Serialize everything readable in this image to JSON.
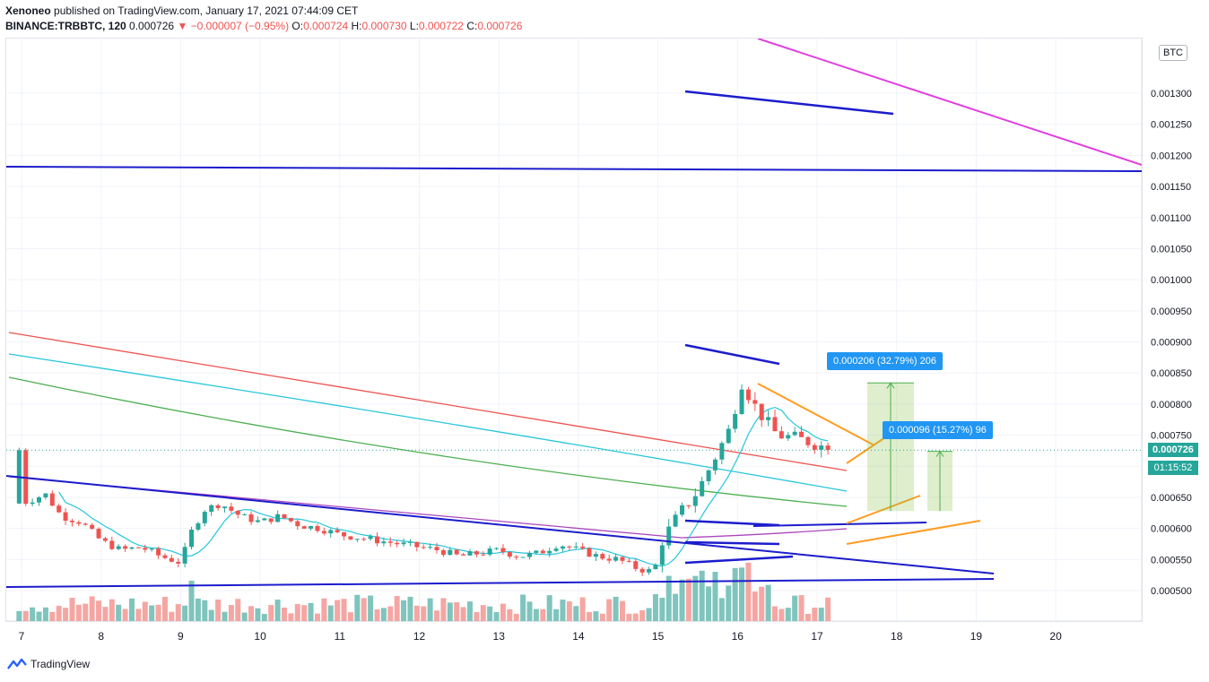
{
  "header": {
    "publisher": "Xenoneo",
    "published_text": "published on TradingView.com, January 17, 2021 07:44:09 CET",
    "symbol": "BINANCE:TRBBTC, 120",
    "last": "0.000726",
    "change": "▼ −0.000007 (−0.95%)",
    "open_label": "O:",
    "open": "0.000724",
    "high_label": "H:",
    "high": "0.000730",
    "low_label": "L:",
    "low": "0.000722",
    "close_label": "C:",
    "close": "0.000726"
  },
  "axis": {
    "currency": "BTC",
    "price_tag": "0.000726",
    "countdown": "01:15:52"
  },
  "measures": [
    {
      "label": "0.000206 (32.79%) 206"
    },
    {
      "label": "0.000096 (15.27%) 96"
    }
  ],
  "footer": {
    "brand": "TradingView"
  },
  "colors": {
    "up": "#26a69a",
    "down": "#ef5350",
    "volume_up": "#7fc4bd",
    "volume_down": "#f5a6a3",
    "trendline": "#1c1ccc",
    "magenta": "#e040e0",
    "orange": "#ff9b1f",
    "ma_red": "#ef5350",
    "ma_teal": "#26c6da",
    "ma_green": "#4caf50",
    "ma_purple": "#ab47bc",
    "measure": "#2196f3"
  },
  "chart_data": {
    "type": "candlestick",
    "title": "BINANCE:TRBBTC, 120",
    "ylabel": "BTC",
    "ylim": [
      0.00045,
      0.00136
    ],
    "y_ticks": [
      "0.001300",
      "0.001250",
      "0.001200",
      "0.001150",
      "0.001100",
      "0.001050",
      "0.001000",
      "0.000950",
      "0.000900",
      "0.000850",
      "0.000800",
      "0.000750",
      "0.000700",
      "0.000650",
      "0.000600",
      "0.000550",
      "0.000500"
    ],
    "y_tick_values": [
      0.0013,
      0.00125,
      0.0012,
      0.00115,
      0.0011,
      0.00105,
      0.001,
      0.00095,
      0.0009,
      0.00085,
      0.0008,
      0.00075,
      0.0007,
      0.00065,
      0.0006,
      0.00055,
      0.0005
    ],
    "x_ticks": [
      "7",
      "8",
      "9",
      "10",
      "11",
      "12",
      "13",
      "14",
      "15",
      "16",
      "17",
      "18",
      "19",
      "20"
    ],
    "x_tick_days": [
      7,
      8,
      9,
      10,
      11,
      12,
      13,
      14,
      15,
      16,
      17,
      18,
      19,
      20
    ],
    "xlim_days": [
      6.95,
      21.0
    ],
    "candles_daily_outline": [
      {
        "day": 7.0,
        "close": 0.00064
      },
      {
        "day": 7.3,
        "close": 0.000655
      },
      {
        "day": 7.5,
        "close": 0.00062
      },
      {
        "day": 7.75,
        "close": 0.00061
      },
      {
        "day": 8.0,
        "close": 0.00058
      },
      {
        "day": 8.25,
        "close": 0.000565
      },
      {
        "day": 8.5,
        "close": 0.00057
      },
      {
        "day": 8.75,
        "close": 0.000555
      },
      {
        "day": 9.0,
        "close": 0.000545
      },
      {
        "day": 9.15,
        "close": 0.0006
      },
      {
        "day": 9.3,
        "close": 0.00063
      },
      {
        "day": 9.5,
        "close": 0.00064
      },
      {
        "day": 9.75,
        "close": 0.00062
      },
      {
        "day": 10.0,
        "close": 0.00061
      },
      {
        "day": 10.25,
        "close": 0.00062
      },
      {
        "day": 10.5,
        "close": 0.000605
      },
      {
        "day": 10.75,
        "close": 0.0006
      },
      {
        "day": 11.0,
        "close": 0.00059
      },
      {
        "day": 11.25,
        "close": 0.000585
      },
      {
        "day": 11.5,
        "close": 0.00058
      },
      {
        "day": 11.75,
        "close": 0.000575
      },
      {
        "day": 12.0,
        "close": 0.00057
      },
      {
        "day": 12.25,
        "close": 0.000565
      },
      {
        "day": 12.5,
        "close": 0.000555
      },
      {
        "day": 12.75,
        "close": 0.00056
      },
      {
        "day": 13.0,
        "close": 0.000565
      },
      {
        "day": 13.25,
        "close": 0.000555
      },
      {
        "day": 13.5,
        "close": 0.00056
      },
      {
        "day": 13.75,
        "close": 0.000575
      },
      {
        "day": 14.0,
        "close": 0.000565
      },
      {
        "day": 14.25,
        "close": 0.000555
      },
      {
        "day": 14.5,
        "close": 0.00055
      },
      {
        "day": 14.75,
        "close": 0.000535
      },
      {
        "day": 14.95,
        "close": 0.00053
      },
      {
        "day": 15.05,
        "close": 0.00058
      },
      {
        "day": 15.25,
        "close": 0.00062
      },
      {
        "day": 15.5,
        "close": 0.00066
      },
      {
        "day": 15.7,
        "close": 0.00071
      },
      {
        "day": 15.9,
        "close": 0.00076
      },
      {
        "day": 16.05,
        "close": 0.000835
      },
      {
        "day": 16.25,
        "close": 0.00079
      },
      {
        "day": 16.5,
        "close": 0.00075
      },
      {
        "day": 16.75,
        "close": 0.000745
      },
      {
        "day": 17.0,
        "close": 0.000735
      },
      {
        "day": 17.2,
        "close": 0.000726
      }
    ],
    "last_price": 0.000726,
    "measurements": [
      {
        "label": "0.000206 (32.79%) 206",
        "from": 0.000628,
        "to": 0.000834
      },
      {
        "label": "0.000096 (15.27%) 96",
        "from": 0.000628,
        "to": 0.000724
      }
    ]
  }
}
